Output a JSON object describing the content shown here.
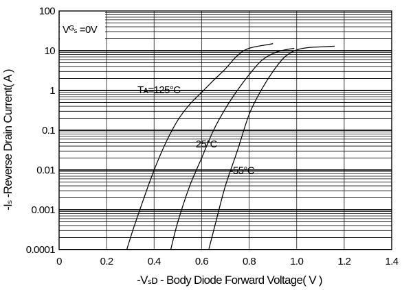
{
  "chart_data": {
    "type": "line",
    "title": "",
    "xlabel": "-Vₛᴅ - Body Diode Forward Voltage( V )",
    "ylabel": "-Iₛ -Reverse Drain Current( A )",
    "xlim": [
      0,
      1.4
    ],
    "ylim": [
      0.0001,
      100
    ],
    "x_scale": "linear",
    "y_scale": "log",
    "grid": true,
    "x_ticks": [
      "0",
      "0.2",
      "0.4",
      "0.6",
      "0.8",
      "1.0",
      "1.2",
      "1.4"
    ],
    "y_ticks": [
      "0.0001",
      "0.001",
      "0.01",
      "0.1",
      "1",
      "10",
      "100"
    ],
    "condition": "Vᴳₛ =0V",
    "series": [
      {
        "points": [
          [
            0.285,
            0.0001
          ],
          [
            0.31,
            0.0003
          ],
          [
            0.35,
            0.0015
          ],
          [
            0.4,
            0.01
          ],
          [
            0.45,
            0.05
          ],
          [
            0.5,
            0.18
          ],
          [
            0.55,
            0.45
          ],
          [
            0.6,
            0.9
          ],
          [
            0.65,
            1.8
          ],
          [
            0.7,
            3.5
          ],
          [
            0.75,
            7.5
          ],
          [
            0.8,
            11.5
          ],
          [
            0.9,
            15
          ]
        ]
      },
      {
        "points": [
          [
            0.47,
            0.0001
          ],
          [
            0.5,
            0.0005
          ],
          [
            0.55,
            0.004
          ],
          [
            0.6,
            0.02
          ],
          [
            0.65,
            0.1
          ],
          [
            0.7,
            0.35
          ],
          [
            0.75,
            1.0
          ],
          [
            0.8,
            2.5
          ],
          [
            0.85,
            5.5
          ],
          [
            0.9,
            8.5
          ],
          [
            0.95,
            10.5
          ],
          [
            0.99,
            11.5
          ]
        ]
      },
      {
        "points": [
          [
            0.63,
            0.0001
          ],
          [
            0.66,
            0.0005
          ],
          [
            0.7,
            0.004
          ],
          [
            0.75,
            0.03
          ],
          [
            0.8,
            0.25
          ],
          [
            0.85,
            1.0
          ],
          [
            0.9,
            3.0
          ],
          [
            0.95,
            7.0
          ],
          [
            1.0,
            10.5
          ],
          [
            1.05,
            12.0
          ],
          [
            1.1,
            12.5
          ],
          [
            1.16,
            13.0
          ]
        ]
      }
    ],
    "annotations": [
      {
        "text": "Tᴀ=125°C",
        "x": 0.42,
        "y": 0.86
      },
      {
        "text": "25°C",
        "x": 0.62,
        "y": 0.037
      },
      {
        "text": "-55°C",
        "x": 0.77,
        "y": 0.008
      }
    ],
    "colors": {
      "lines": "#000000",
      "grid": "#000000",
      "background": "#ffffff"
    }
  }
}
